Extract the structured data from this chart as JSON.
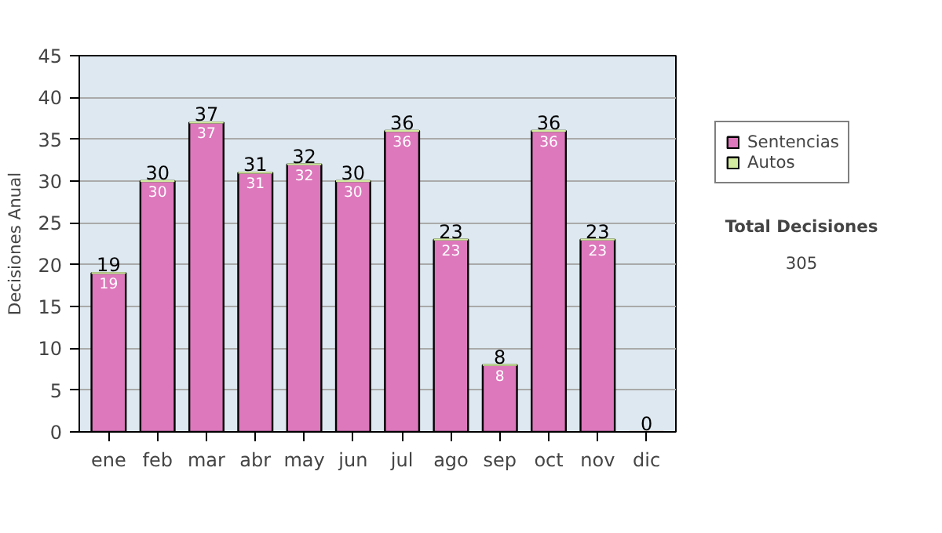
{
  "chart_data": {
    "type": "bar",
    "stacked": true,
    "ylabel": "Decisiones Anual",
    "categories": [
      "ene",
      "feb",
      "mar",
      "abr",
      "may",
      "jun",
      "jul",
      "ago",
      "sep",
      "oct",
      "nov",
      "dic"
    ],
    "series": [
      {
        "name": "Sentencias",
        "color": "#dd78bc",
        "values": [
          19,
          30,
          37,
          31,
          32,
          30,
          36,
          23,
          8,
          36,
          23,
          0
        ],
        "value_labels": [
          "19",
          "30",
          "37",
          "31",
          "32",
          "30",
          "36",
          "23",
          "8",
          "36",
          "23",
          null
        ]
      },
      {
        "name": "Autos",
        "color": "#d4eca0",
        "values": [
          0,
          0,
          0,
          0,
          0,
          0,
          0,
          0,
          0,
          0,
          0,
          0
        ]
      }
    ],
    "totals": [
      "19",
      "30",
      "37",
      "31",
      "32",
      "30",
      "36",
      "23",
      "8",
      "36",
      "23",
      "0"
    ],
    "ylim": [
      0,
      45
    ],
    "yticks": [
      0,
      5,
      10,
      15,
      20,
      25,
      30,
      35,
      40,
      45
    ],
    "grid": "y",
    "legend": "right",
    "annotations": [
      "Total Decisiones",
      "305"
    ]
  }
}
